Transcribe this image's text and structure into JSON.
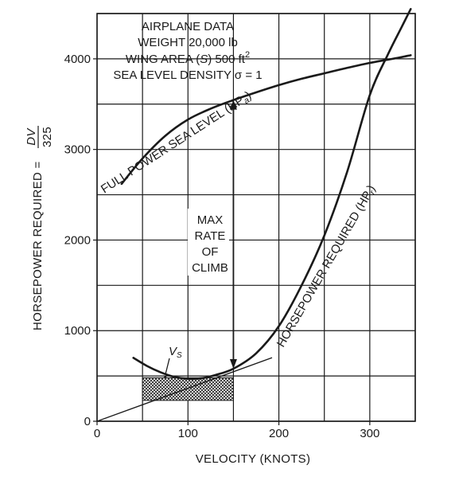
{
  "chart_data": {
    "type": "line",
    "xlabel": "VELOCITY (KNOTS)",
    "ylabel_main": "HORSEPOWER REQUIRED =",
    "ylabel_numerator": "DV",
    "ylabel_denominator": "325",
    "xlim": [
      0,
      350
    ],
    "ylim": [
      0,
      4500
    ],
    "xticks": [
      0,
      100,
      200,
      300
    ],
    "yticks": [
      0,
      1000,
      2000,
      3000,
      4000
    ],
    "grid": true,
    "info_box": {
      "line1": "AIRPLANE DATA",
      "line2": "WEIGHT 20,000 lb",
      "line3_pre": "WING AREA (",
      "line3_S": "S",
      "line3_mid": ") 500 ft",
      "line3_sup": "2",
      "line4": "SEA LEVEL DENSITY σ = 1"
    },
    "series": [
      {
        "name": "FULL POWER SEA LEVEL (HPa)",
        "label_text": "FULL POWER SEA LEVEL (HP",
        "label_sub": "a",
        "label_close": ")",
        "x": [
          27,
          50,
          75,
          100,
          125,
          150,
          175,
          200,
          225,
          250,
          275,
          300,
          325,
          345
        ],
        "y": [
          2620,
          2900,
          3150,
          3330,
          3450,
          3545,
          3630,
          3710,
          3780,
          3840,
          3900,
          3955,
          4000,
          4040
        ]
      },
      {
        "name": "HORSEPOWER REQUIRED (HPr)",
        "label_text": "HORSEPOWER REQUIRED (HP",
        "label_sub": "r",
        "label_close": ")",
        "x": [
          40,
          55,
          70,
          85,
          100,
          115,
          130,
          150,
          175,
          200,
          225,
          250,
          275,
          300,
          320,
          335,
          345
        ],
        "y": [
          700,
          610,
          540,
          490,
          470,
          475,
          510,
          580,
          750,
          1050,
          1500,
          2050,
          2750,
          3600,
          4050,
          4350,
          4550
        ]
      },
      {
        "name": "tangent",
        "x": [
          0,
          192
        ],
        "y": [
          0,
          700
        ]
      }
    ],
    "annotations": {
      "max_roc_line1": "MAX",
      "max_roc_line2": "RATE",
      "max_roc_line3": "OF",
      "max_roc_line4": "CLIMB",
      "max_roc_x": 150,
      "max_roc_y_low": 580,
      "max_roc_y_high": 3545,
      "vs_label": "V",
      "vs_sub": "S",
      "vs_x": 75,
      "vs_y": 490,
      "hatched_region": {
        "x": [
          50,
          150
        ],
        "y": [
          230,
          480
        ]
      }
    }
  }
}
